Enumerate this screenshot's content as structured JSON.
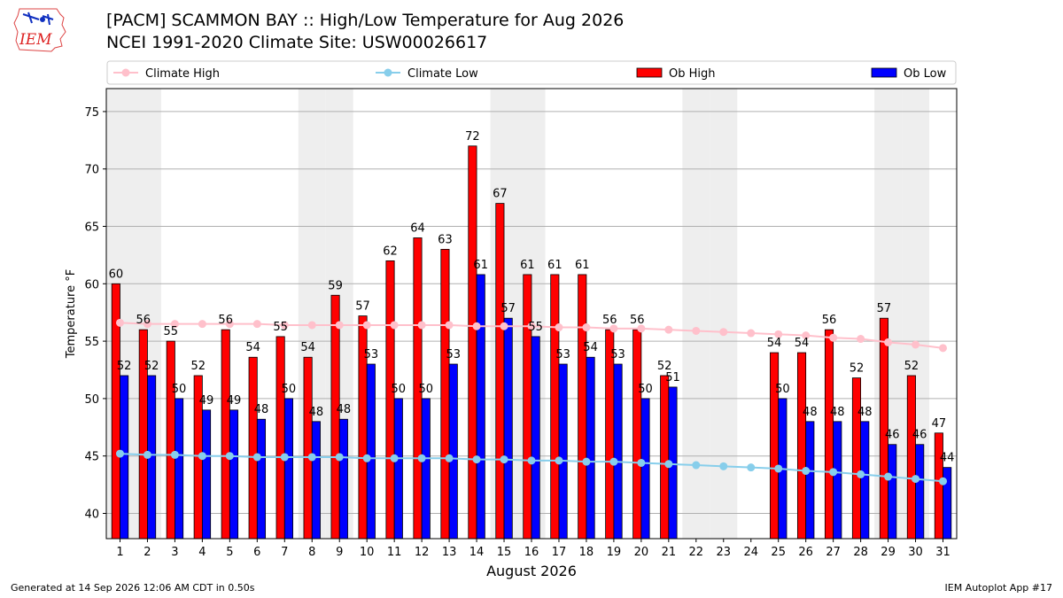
{
  "header": {
    "title_line1": "[PACM] SCAMMON BAY :: High/Low Temperature for Aug 2026",
    "title_line2": "NCEI 1991-2020 Climate Site: USW00026617",
    "logo_text": "IEM"
  },
  "footer": {
    "generated": "Generated at 14 Sep 2026 12:06 AM CDT in 0.50s",
    "app": "IEM Autoplot App #17"
  },
  "colors": {
    "climate_high": "#ffc0cb",
    "climate_low": "#87ceeb",
    "ob_high": "#ff0000",
    "ob_low": "#0000ff",
    "weekend_band": "#eeeeee",
    "grid": "#b0b0b0"
  },
  "chart_data": {
    "type": "bar",
    "title": "[PACM] SCAMMON BAY :: High/Low Temperature for Aug 2026",
    "subtitle": "NCEI 1991-2020 Climate Site: USW00026617",
    "xlabel": "August 2026",
    "ylabel": "Temperature °F",
    "x": [
      1,
      2,
      3,
      4,
      5,
      6,
      7,
      8,
      9,
      10,
      11,
      12,
      13,
      14,
      15,
      16,
      17,
      18,
      19,
      20,
      21,
      22,
      23,
      24,
      25,
      26,
      27,
      28,
      29,
      30,
      31
    ],
    "ylim": [
      37.8,
      77
    ],
    "yticks": [
      40,
      45,
      50,
      55,
      60,
      65,
      70,
      75
    ],
    "legend": "top, horizontal",
    "grid": "horizontal",
    "weekend_days": [
      1,
      2,
      8,
      9,
      15,
      16,
      22,
      23,
      29,
      30
    ],
    "series": [
      {
        "name": "Ob High",
        "kind": "bar",
        "values": [
          60,
          56,
          55,
          52,
          56,
          54,
          55,
          54,
          59,
          57,
          62,
          64,
          63,
          72,
          67,
          61,
          61,
          61,
          56,
          56,
          52,
          null,
          null,
          null,
          54,
          54,
          56,
          52,
          57,
          52,
          47
        ],
        "plotted": [
          60,
          56,
          55,
          52,
          56,
          53.6,
          55.4,
          53.6,
          59,
          57.2,
          62,
          64,
          63,
          72,
          67,
          60.8,
          60.8,
          60.8,
          56,
          56,
          52,
          null,
          null,
          null,
          54,
          54,
          56,
          51.8,
          57,
          52,
          47
        ]
      },
      {
        "name": "Ob Low",
        "kind": "bar",
        "values": [
          52,
          52,
          50,
          49,
          49,
          48,
          50,
          48,
          48,
          53,
          50,
          50,
          53,
          61,
          57,
          55,
          53,
          54,
          53,
          50,
          51,
          null,
          null,
          null,
          50,
          48,
          48,
          48,
          46,
          46,
          44
        ],
        "plotted": [
          52,
          52,
          50,
          49,
          49,
          48.2,
          50,
          48,
          48.2,
          53,
          50,
          50,
          53,
          60.8,
          57,
          55.4,
          53,
          53.6,
          53,
          50,
          51,
          null,
          null,
          null,
          50,
          48,
          48,
          48,
          46,
          46,
          44
        ]
      },
      {
        "name": "Climate High",
        "kind": "line",
        "values": [
          56.6,
          56.5,
          56.5,
          56.5,
          56.5,
          56.5,
          56.4,
          56.4,
          56.4,
          56.4,
          56.4,
          56.4,
          56.4,
          56.3,
          56.3,
          56.3,
          56.2,
          56.2,
          56.1,
          56.1,
          56.0,
          55.9,
          55.8,
          55.7,
          55.6,
          55.5,
          55.3,
          55.2,
          54.9,
          54.7,
          54.4
        ]
      },
      {
        "name": "Climate Low",
        "kind": "line",
        "values": [
          45.2,
          45.1,
          45.1,
          45.0,
          45.0,
          44.9,
          44.9,
          44.9,
          44.9,
          44.8,
          44.8,
          44.8,
          44.8,
          44.7,
          44.7,
          44.6,
          44.6,
          44.5,
          44.5,
          44.4,
          44.3,
          44.2,
          44.1,
          44.0,
          43.9,
          43.7,
          43.6,
          43.4,
          43.2,
          43.0,
          42.8
        ]
      }
    ]
  }
}
